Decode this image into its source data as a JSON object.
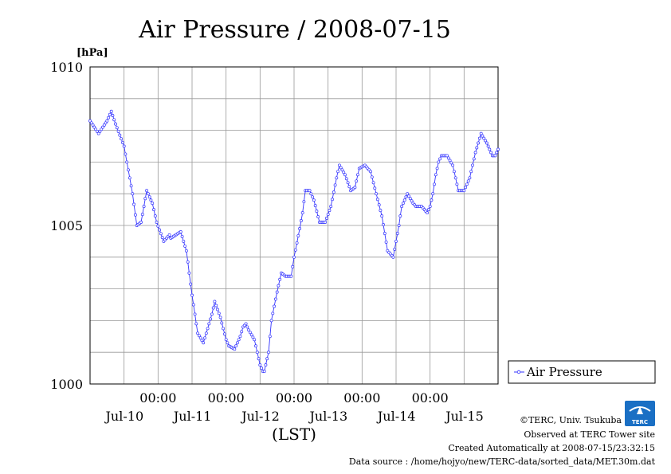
{
  "chart_data": {
    "type": "line",
    "title": "Air Pressure / 2008-07-15",
    "ylabel": "[hPa]",
    "xlabel": "(LST)",
    "ylim": [
      1000,
      1010
    ],
    "yticks": [
      "1010",
      "1005",
      "1000"
    ],
    "x_range_hours": [
      0,
      144
    ],
    "xticks": [
      {
        "hour": 24,
        "time": "00:00",
        "date": "Jul-10"
      },
      {
        "hour": 48,
        "time": "00:00",
        "date": "Jul-11"
      },
      {
        "hour": 72,
        "time": "00:00",
        "date": "Jul-12"
      },
      {
        "hour": 96,
        "time": "00:00",
        "date": "Jul-13"
      },
      {
        "hour": 120,
        "time": "00:00",
        "date": "Jul-14"
      }
    ],
    "xtick_dates_extra": [
      {
        "date": "Jul-15"
      }
    ],
    "grid": true,
    "legend": "right",
    "series": [
      {
        "name": "Air Pressure",
        "color": "#3333ff",
        "x": [
          0,
          3,
          6,
          7.5,
          9,
          12,
          15,
          16.5,
          18,
          20,
          22,
          23.5,
          26,
          28,
          28.5,
          32,
          34,
          36,
          38,
          40,
          41,
          42,
          43,
          44,
          46,
          48,
          49,
          51,
          53,
          54,
          55,
          56,
          58,
          60,
          61,
          61.5,
          62,
          63,
          64,
          66,
          67.5,
          69,
          71,
          72,
          74,
          75,
          76,
          77.5,
          79,
          81,
          83,
          85,
          87,
          88,
          90,
          92,
          93.5,
          95,
          97,
          99,
          101,
          103,
          105,
          107,
          109,
          110,
          112,
          114,
          115,
          117,
          119,
          120,
          121,
          122,
          123,
          124,
          126,
          128,
          130,
          132,
          134,
          136,
          138,
          140,
          141,
          142,
          143,
          144
        ],
        "y": [
          1008.3,
          1007.9,
          1008.3,
          1008.6,
          1008.2,
          1007.5,
          1006.0,
          1005.0,
          1005.1,
          1006.1,
          1005.7,
          1005.1,
          1004.5,
          1004.7,
          1004.6,
          1004.8,
          1004.2,
          1002.8,
          1001.6,
          1001.3,
          1001.6,
          1001.9,
          1002.2,
          1002.6,
          1002.1,
          1001.4,
          1001.2,
          1001.1,
          1001.5,
          1001.8,
          1001.9,
          1001.7,
          1001.4,
          1000.6,
          1000.4,
          1000.4,
          1000.6,
          1001.0,
          1002.0,
          1002.9,
          1003.5,
          1003.4,
          1003.4,
          1004.0,
          1004.9,
          1005.4,
          1006.1,
          1006.1,
          1005.8,
          1005.1,
          1005.1,
          1005.6,
          1006.5,
          1006.9,
          1006.6,
          1006.1,
          1006.2,
          1006.8,
          1006.9,
          1006.7,
          1006.0,
          1005.3,
          1004.2,
          1004.0,
          1005.0,
          1005.6,
          1006.0,
          1005.7,
          1005.6,
          1005.6,
          1005.4,
          1005.6,
          1006.0,
          1006.6,
          1007.0,
          1007.2,
          1007.2,
          1006.9,
          1006.1,
          1006.1,
          1006.5,
          1007.3,
          1007.9,
          1007.6,
          1007.4,
          1007.2,
          1007.2,
          1007.4
        ]
      }
    ]
  },
  "legend": {
    "label": "Air Pressure"
  },
  "footer": {
    "copyright": "©TERC, Univ. Tsukuba",
    "observed": "Observed at TERC Tower site",
    "created": "Created Automatically at 2008-07-15/23:32:15",
    "source": "Data source : /home/hojyo/new/TERC-data/sorted_data/MET.30m.dat"
  },
  "logo_text": "TERC"
}
